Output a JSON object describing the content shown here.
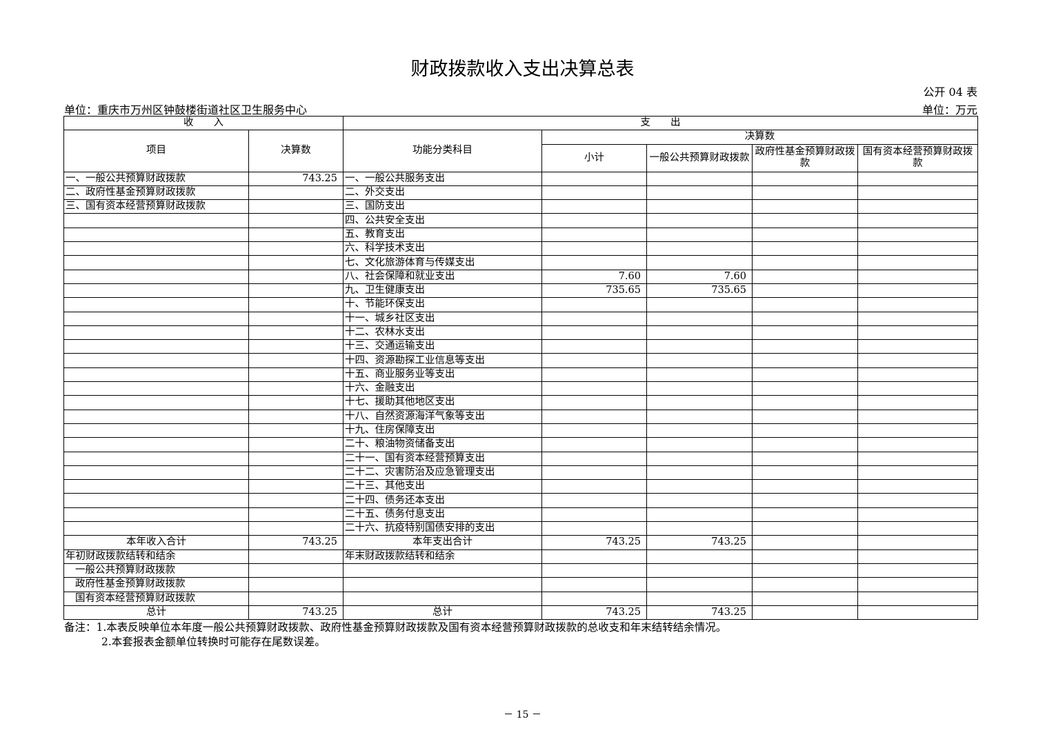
{
  "title": "财政拨款收入支出决算总表",
  "table_code": "公开 04 表",
  "unit_org": "单位：重庆市万州区钟鼓楼街道社区卫生服务中心",
  "unit_currency": "单位：万元",
  "header": {
    "income": "收　　入",
    "expense": "支　　出",
    "item": "项目",
    "amount": "决算数",
    "func": "功能分类科目",
    "final": "决算数",
    "subtotal": "小计",
    "general": "一般公共预算财政拨款",
    "gov_fund": "政府性基金预算财政拨款",
    "state_capital": "国有资本经营预算财政拨款"
  },
  "rows": [
    [
      "一、一般公共预算财政拨款",
      "743.25",
      "一、一般公共服务支出",
      "",
      "",
      "",
      ""
    ],
    [
      "二、政府性基金预算财政拨款",
      "",
      "二、外交支出",
      "",
      "",
      "",
      ""
    ],
    [
      "三、国有资本经营预算财政拨款",
      "",
      "三、国防支出",
      "",
      "",
      "",
      ""
    ],
    [
      "",
      "",
      "四、公共安全支出",
      "",
      "",
      "",
      ""
    ],
    [
      "",
      "",
      "五、教育支出",
      "",
      "",
      "",
      ""
    ],
    [
      "",
      "",
      "六、科学技术支出",
      "",
      "",
      "",
      ""
    ],
    [
      "",
      "",
      "七、文化旅游体育与传媒支出",
      "",
      "",
      "",
      ""
    ],
    [
      "",
      "",
      "八、社会保障和就业支出",
      "7.60",
      "7.60",
      "",
      ""
    ],
    [
      "",
      "",
      "九、卫生健康支出",
      "735.65",
      "735.65",
      "",
      ""
    ],
    [
      "",
      "",
      "十、节能环保支出",
      "",
      "",
      "",
      ""
    ],
    [
      "",
      "",
      "十一、城乡社区支出",
      "",
      "",
      "",
      ""
    ],
    [
      "",
      "",
      "十二、农林水支出",
      "",
      "",
      "",
      ""
    ],
    [
      "",
      "",
      "十三、交通运输支出",
      "",
      "",
      "",
      ""
    ],
    [
      "",
      "",
      "十四、资源勘探工业信息等支出",
      "",
      "",
      "",
      ""
    ],
    [
      "",
      "",
      "十五、商业服务业等支出",
      "",
      "",
      "",
      ""
    ],
    [
      "",
      "",
      "十六、金融支出",
      "",
      "",
      "",
      ""
    ],
    [
      "",
      "",
      "十七、援助其他地区支出",
      "",
      "",
      "",
      ""
    ],
    [
      "",
      "",
      "十八、自然资源海洋气象等支出",
      "",
      "",
      "",
      ""
    ],
    [
      "",
      "",
      "十九、住房保障支出",
      "",
      "",
      "",
      ""
    ],
    [
      "",
      "",
      "二十、粮油物资储备支出",
      "",
      "",
      "",
      ""
    ],
    [
      "",
      "",
      "二十一、国有资本经营预算支出",
      "",
      "",
      "",
      ""
    ],
    [
      "",
      "",
      "二十二、灾害防治及应急管理支出",
      "",
      "",
      "",
      ""
    ],
    [
      "",
      "",
      "二十三、其他支出",
      "",
      "",
      "",
      ""
    ],
    [
      "",
      "",
      "二十四、债务还本支出",
      "",
      "",
      "",
      ""
    ],
    [
      "",
      "",
      "二十五、债务付息支出",
      "",
      "",
      "",
      ""
    ],
    [
      "",
      "",
      "二十六、抗疫特别国债安排的支出",
      "",
      "",
      "",
      ""
    ],
    [
      "本年收入合计",
      "743.25",
      "本年支出合计",
      "743.25",
      "743.25",
      "",
      ""
    ],
    [
      "年初财政拨款结转和结余",
      "",
      "年末财政拨款结转和结余",
      "",
      "",
      "",
      ""
    ],
    [
      "一般公共预算财政拨款",
      "",
      "",
      "",
      "",
      "",
      ""
    ],
    [
      "政府性基金预算财政拨款",
      "",
      "",
      "",
      "",
      "",
      ""
    ],
    [
      "国有资本经营预算财政拨款",
      "",
      "",
      "",
      "",
      "",
      ""
    ],
    [
      "总计",
      "743.25",
      "总计",
      "743.25",
      "743.25",
      "",
      ""
    ]
  ],
  "notes": [
    "备注：1.本表反映单位本年度一般公共预算财政拨款、政府性基金预算财政拨款及国有资本经营预算财政拨款的总收支和年末结转结余情况。",
    "2.本套报表金额单位转换时可能存在尾数误差。"
  ],
  "page_number": "－ 15 －"
}
